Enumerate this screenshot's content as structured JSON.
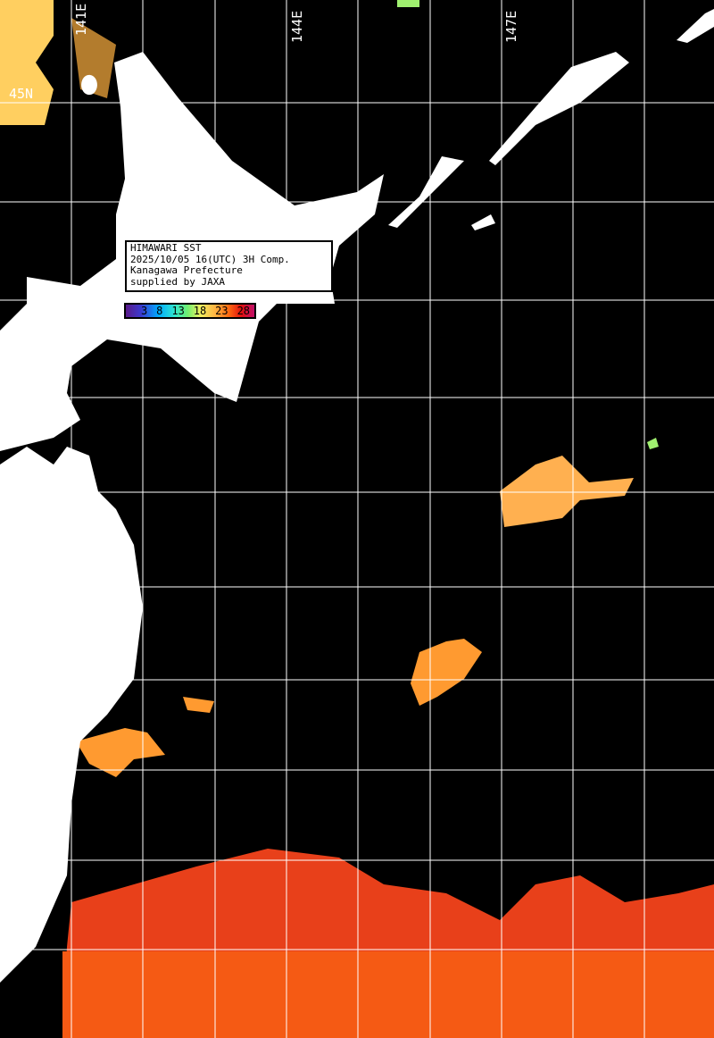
{
  "info_box": {
    "line1": "HIMAWARI SST",
    "line2": "2025/10/05 16(UTC) 3H Comp.",
    "line3": "Kanagawa Prefecture",
    "line4": "supplied by JAXA"
  },
  "colorbar": {
    "ticks": [
      "3",
      "8",
      "13",
      "18",
      "23",
      "28"
    ],
    "colors": [
      "#5a1a8a",
      "#00a8ff",
      "#70f070",
      "#f0f060",
      "#ffb040",
      "#e01010",
      "#c0106a"
    ]
  },
  "grid_labels": {
    "lon_141": "141E",
    "lon_144": "144E",
    "lon_147": "147E",
    "lat_45": "45N"
  },
  "colors": {
    "land": "#ffffff",
    "no_data": "#000000",
    "grid": "#ffffff"
  }
}
